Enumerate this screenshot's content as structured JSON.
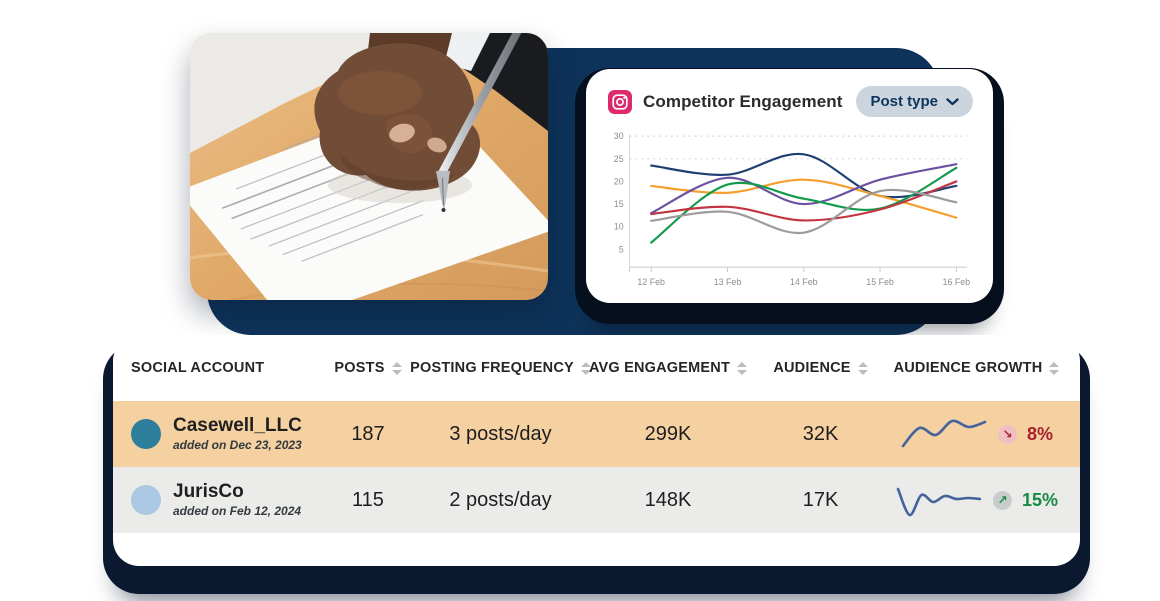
{
  "chart_card": {
    "title": "Competitor Engagement",
    "icon": "instagram-icon",
    "dropdown": {
      "label": "Post type",
      "state": "collapsed"
    }
  },
  "chart_data": {
    "type": "line",
    "title": "Competitor Engagement",
    "x": [
      "12 Feb",
      "13 Feb",
      "14 Feb",
      "15 Feb",
      "16 Feb"
    ],
    "yticks": [
      5,
      10,
      15,
      20,
      25,
      30
    ],
    "ylim": [
      5,
      30
    ],
    "dashed_gridlines_at": [
      25,
      30
    ],
    "legend": "none",
    "series": [
      {
        "name": "competitor-navy",
        "color": "#1d3f72",
        "values": [
          23.5,
          21.5,
          26.0,
          16.8,
          19.0
        ]
      },
      {
        "name": "competitor-orange",
        "color": "#f59e2c",
        "values": [
          19.0,
          17.5,
          20.4,
          16.8,
          12.0
        ]
      },
      {
        "name": "competitor-purple",
        "color": "#6d51a1",
        "values": [
          13.0,
          20.8,
          15.0,
          20.4,
          23.8
        ]
      },
      {
        "name": "competitor-green",
        "color": "#149a4d",
        "values": [
          6.5,
          19.3,
          16.2,
          14.0,
          23.0
        ]
      },
      {
        "name": "competitor-red",
        "color": "#c23540",
        "values": [
          12.8,
          14.4,
          11.4,
          13.8,
          20.0
        ]
      },
      {
        "name": "competitor-gray",
        "color": "#9b9b9b",
        "values": [
          11.3,
          13.3,
          8.7,
          17.9,
          15.4
        ]
      }
    ]
  },
  "table": {
    "columns": [
      {
        "label": "SOCIAL ACCOUNT",
        "sortable": false
      },
      {
        "label": "POSTS",
        "sortable": true
      },
      {
        "label": "POSTING FREQUENCY",
        "sortable": true
      },
      {
        "label": "AVG ENGAGEMENT",
        "sortable": true
      },
      {
        "label": "AUDIENCE",
        "sortable": true
      },
      {
        "label": "AUDIENCE GROWTH",
        "sortable": true
      }
    ],
    "rows": [
      {
        "account": "Casewell_LLC",
        "added": "added on Dec 23, 2023",
        "posts": "187",
        "frequency": "3 posts/day",
        "avg_engagement": "299K",
        "audience": "32K",
        "growth": "8%",
        "growth_direction": "down",
        "growth_icon": "arrow-down-right-icon",
        "row_bg": "#f5d0a1",
        "avatar_color": "#2e7f9c",
        "spark_color": "#44639c",
        "badge_bg": "#efbfc3",
        "accent": "#a81f2d",
        "sparkline": [
          31,
          13,
          20,
          6,
          12,
          7
        ]
      },
      {
        "account": "JurisCo",
        "added": "added on Feb 12, 2024",
        "posts": "115",
        "frequency": "2 posts/day",
        "avg_engagement": "148K",
        "audience": "17K",
        "growth": "15%",
        "growth_direction": "up",
        "growth_icon": "arrow-up-right-icon",
        "row_bg": "#ebebe9",
        "avatar_color": "#abc7e1",
        "spark_color": "#44639c",
        "badge_bg": "#c9cccd",
        "accent": "#168a42",
        "sparkline": [
          8,
          34,
          14,
          21,
          15,
          18,
          17,
          18
        ]
      }
    ]
  },
  "colors": {
    "backdrop_navy": "#0e335a",
    "shadow_dark": "#060f1d",
    "row_highlight": "#f5d0a1",
    "instagram_pink": "#dc2a6d",
    "pill_bg": "#ccd5dd",
    "pill_text": "#0d355e"
  }
}
